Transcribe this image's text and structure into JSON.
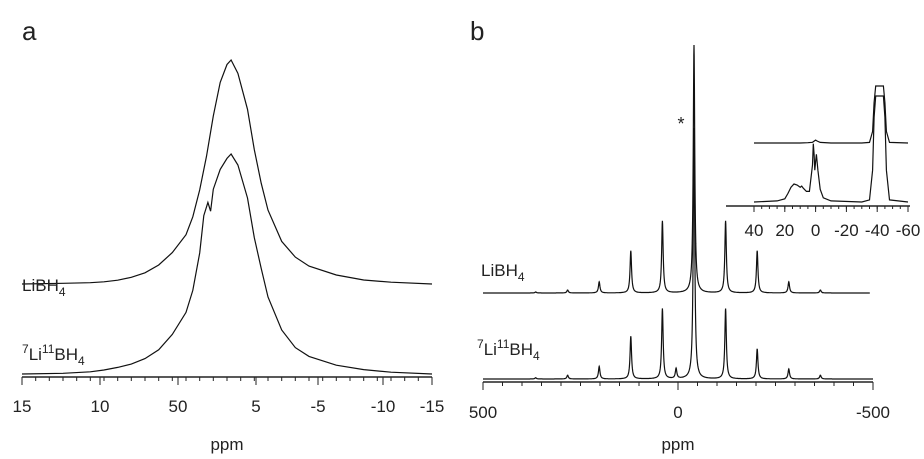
{
  "chart_data": [
    {
      "panel_label": "a",
      "type": "line",
      "xlabel": "ppm",
      "xlim": [
        15,
        -15
      ],
      "x_ticks": [
        "15",
        "10",
        "50",
        "5",
        "-5",
        "-10",
        "-15"
      ],
      "series": [
        {
          "name": "LiBH4",
          "label_main": "LiBH",
          "label_sub": "4",
          "points": [
            [
              15,
              0
            ],
            [
              12,
              0.003
            ],
            [
              10,
              0.006
            ],
            [
              9,
              0.01
            ],
            [
              8,
              0.017
            ],
            [
              7,
              0.03
            ],
            [
              6,
              0.05
            ],
            [
              5,
              0.085
            ],
            [
              4,
              0.14
            ],
            [
              3,
              0.22
            ],
            [
              2.5,
              0.3
            ],
            [
              2,
              0.42
            ],
            [
              1.5,
              0.57
            ],
            [
              1,
              0.75
            ],
            [
              0.5,
              0.9
            ],
            [
              0,
              0.98
            ],
            [
              -0.3,
              1.0
            ],
            [
              -0.8,
              0.94
            ],
            [
              -1.5,
              0.78
            ],
            [
              -2,
              0.6
            ],
            [
              -2.5,
              0.45
            ],
            [
              -3,
              0.33
            ],
            [
              -4,
              0.19
            ],
            [
              -5,
              0.12
            ],
            [
              -6,
              0.08
            ],
            [
              -8,
              0.04
            ],
            [
              -10,
              0.018
            ],
            [
              -12,
              0.008
            ],
            [
              -15,
              0
            ]
          ]
        },
        {
          "name": "7Li11BH4",
          "label_sup1": "7",
          "label_li": "Li",
          "label_sup2": "11",
          "label_main": "BH",
          "label_sub": "4",
          "points": [
            [
              15,
              0
            ],
            [
              12,
              0.003
            ],
            [
              10,
              0.01
            ],
            [
              9,
              0.018
            ],
            [
              8,
              0.03
            ],
            [
              7,
              0.045
            ],
            [
              6,
              0.07
            ],
            [
              5,
              0.11
            ],
            [
              4,
              0.18
            ],
            [
              3,
              0.28
            ],
            [
              2.5,
              0.38
            ],
            [
              2,
              0.55
            ],
            [
              1.7,
              0.72
            ],
            [
              1.4,
              0.78
            ],
            [
              1.2,
              0.74
            ],
            [
              1,
              0.84
            ],
            [
              0.5,
              0.93
            ],
            [
              0,
              0.98
            ],
            [
              -0.3,
              1.0
            ],
            [
              -0.8,
              0.95
            ],
            [
              -1.5,
              0.8
            ],
            [
              -2,
              0.62
            ],
            [
              -2.5,
              0.48
            ],
            [
              -3,
              0.35
            ],
            [
              -4,
              0.2
            ],
            [
              -5,
              0.12
            ],
            [
              -6,
              0.08
            ],
            [
              -8,
              0.04
            ],
            [
              -10,
              0.02
            ],
            [
              -12,
              0.008
            ],
            [
              -15,
              0
            ]
          ]
        }
      ]
    },
    {
      "panel_label": "b",
      "type": "line",
      "xlabel": "ppm",
      "xlim": [
        500,
        -500
      ],
      "x_ticks": [
        "500",
        "0",
        "-500"
      ],
      "annotation": "*",
      "series": [
        {
          "name": "LiBH4",
          "label_main": "LiBH",
          "label_sub": "4",
          "peaks": [
            [
              -41,
              1.0
            ],
            [
              40,
              0.29
            ],
            [
              -122,
              0.29
            ],
            [
              121,
              0.17
            ],
            [
              -203,
              0.17
            ],
            [
              202,
              0.045
            ],
            [
              -284,
              0.045
            ],
            [
              283,
              0.012
            ],
            [
              -365,
              0.012
            ],
            [
              365,
              0.004
            ]
          ]
        },
        {
          "name": "7Li11BH4",
          "label_sup1": "7",
          "label_li": "Li",
          "label_sup2": "11",
          "label_main": "BH",
          "label_sub": "4",
          "peaks": [
            [
              -41,
              1.0
            ],
            [
              40,
              0.28
            ],
            [
              -122,
              0.28
            ],
            [
              121,
              0.17
            ],
            [
              -203,
              0.12
            ],
            [
              202,
              0.05
            ],
            [
              -284,
              0.04
            ],
            [
              283,
              0.015
            ],
            [
              -365,
              0.015
            ],
            [
              365,
              0.005
            ],
            [
              5,
              0.04
            ]
          ]
        }
      ],
      "inset": {
        "xlim": [
          40,
          -60
        ],
        "x_ticks": [
          "40",
          "20",
          "0",
          "-20",
          "-40",
          "-60"
        ],
        "series": [
          {
            "name": "LiBH4",
            "points": [
              [
                40,
                0
              ],
              [
                10,
                0
              ],
              [
                5,
                0.005
              ],
              [
                2,
                0.012
              ],
              [
                0,
                0.05
              ],
              [
                -1,
                0.035
              ],
              [
                -3,
                0.01
              ],
              [
                -10,
                0
              ],
              [
                -30,
                0
              ],
              [
                -35,
                0.01
              ],
              [
                -37,
                0.2
              ],
              [
                -38,
                0.7
              ],
              [
                -39,
                1.0
              ],
              [
                -44,
                1.0
              ],
              [
                -45,
                0.7
              ],
              [
                -46,
                0.2
              ],
              [
                -48,
                0.01
              ],
              [
                -60,
                0
              ]
            ]
          },
          {
            "name": "7Li11BH4",
            "points": [
              [
                40,
                0
              ],
              [
                25,
                0.01
              ],
              [
                20,
                0.03
              ],
              [
                18,
                0.08
              ],
              [
                16,
                0.14
              ],
              [
                14,
                0.17
              ],
              [
                12,
                0.16
              ],
              [
                10,
                0.14
              ],
              [
                9,
                0.15
              ],
              [
                8,
                0.13
              ],
              [
                6,
                0.1
              ],
              [
                4,
                0.1
              ],
              [
                2,
                0.35
              ],
              [
                1.5,
                0.55
              ],
              [
                1,
                0.45
              ],
              [
                0.5,
                0.3
              ],
              [
                0,
                0.38
              ],
              [
                -0.5,
                0.45
              ],
              [
                -1.5,
                0.3
              ],
              [
                -3,
                0.12
              ],
              [
                -5,
                0.04
              ],
              [
                -10,
                0.01
              ],
              [
                -30,
                0
              ],
              [
                -35,
                0.02
              ],
              [
                -37,
                0.3
              ],
              [
                -38,
                0.8
              ],
              [
                -39,
                1.0
              ],
              [
                -44,
                1.0
              ],
              [
                -45,
                0.8
              ],
              [
                -46,
                0.3
              ],
              [
                -48,
                0.02
              ],
              [
                -60,
                0
              ]
            ]
          }
        ]
      }
    }
  ]
}
